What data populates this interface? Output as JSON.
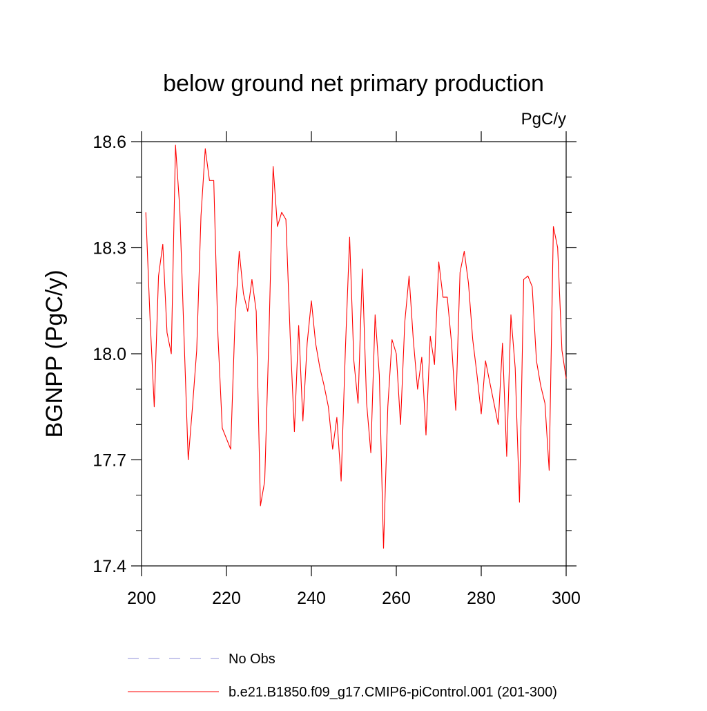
{
  "chart_data": {
    "type": "line",
    "title": "below ground net primary production",
    "units": "PgC/y",
    "xlabel": "",
    "ylabel": "BGNPP  (PgC/y)",
    "xlim": [
      200,
      300
    ],
    "ylim": [
      17.4,
      18.6
    ],
    "x_ticks": [
      200,
      220,
      240,
      260,
      280,
      300
    ],
    "x_tick_labels": [
      "200",
      "220",
      "240",
      "260",
      "280",
      "300"
    ],
    "y_ticks": [
      17.4,
      17.7,
      18.0,
      18.3,
      18.6
    ],
    "y_tick_labels": [
      "17.4",
      "17.7",
      "18.0",
      "18.3",
      "18.6"
    ],
    "grid": false,
    "legend_position": "bottom",
    "legend": [
      {
        "label": "No Obs",
        "style": "dashed",
        "color": "#8f8fd8"
      },
      {
        "label": "b.e21.B1850.f09_g17.CMIP6-piControl.001 (201-300)",
        "style": "solid",
        "color": "#ff0000"
      }
    ],
    "series": [
      {
        "name": "b.e21.B1850.f09_g17.CMIP6-piControl.001 (201-300)",
        "color": "#ff0000",
        "x": [
          201,
          202,
          203,
          204,
          205,
          206,
          207,
          208,
          209,
          210,
          211,
          212,
          213,
          214,
          215,
          216,
          217,
          218,
          219,
          220,
          221,
          222,
          223,
          224,
          225,
          226,
          227,
          228,
          229,
          230,
          231,
          232,
          233,
          234,
          235,
          236,
          237,
          238,
          239,
          240,
          241,
          242,
          243,
          244,
          245,
          246,
          247,
          248,
          249,
          250,
          251,
          252,
          253,
          254,
          255,
          256,
          257,
          258,
          259,
          260,
          261,
          262,
          263,
          264,
          265,
          266,
          267,
          268,
          269,
          270,
          271,
          272,
          273,
          274,
          275,
          276,
          277,
          278,
          279,
          280,
          281,
          282,
          283,
          284,
          285,
          286,
          287,
          288,
          289,
          290,
          291,
          292,
          293,
          294,
          295,
          296,
          297,
          298,
          299,
          300
        ],
        "values": [
          18.4,
          18.1,
          17.85,
          18.22,
          18.31,
          18.06,
          18.0,
          18.59,
          18.41,
          18.05,
          17.7,
          17.85,
          18.01,
          18.39,
          18.58,
          18.49,
          18.49,
          18.05,
          17.79,
          17.76,
          17.73,
          18.09,
          18.29,
          18.17,
          18.12,
          18.21,
          18.12,
          17.57,
          17.64,
          18.05,
          18.53,
          18.36,
          18.4,
          18.38,
          18.05,
          17.78,
          18.08,
          17.81,
          18.03,
          18.15,
          18.03,
          17.96,
          17.91,
          17.85,
          17.73,
          17.82,
          17.64,
          18.01,
          18.33,
          17.98,
          17.86,
          18.24,
          17.86,
          17.72,
          18.11,
          17.94,
          17.45,
          17.85,
          18.04,
          18.0,
          17.8,
          18.09,
          18.22,
          18.04,
          17.9,
          17.99,
          17.77,
          18.05,
          17.97,
          18.26,
          18.16,
          18.16,
          18.03,
          17.84,
          18.23,
          18.29,
          18.2,
          18.04,
          17.94,
          17.83,
          17.98,
          17.92,
          17.86,
          17.8,
          18.03,
          17.71,
          18.11,
          17.96,
          17.58,
          18.21,
          18.22,
          18.19,
          17.98,
          17.91,
          17.86,
          17.67,
          18.36,
          18.3,
          18.01,
          17.93
        ]
      }
    ]
  }
}
